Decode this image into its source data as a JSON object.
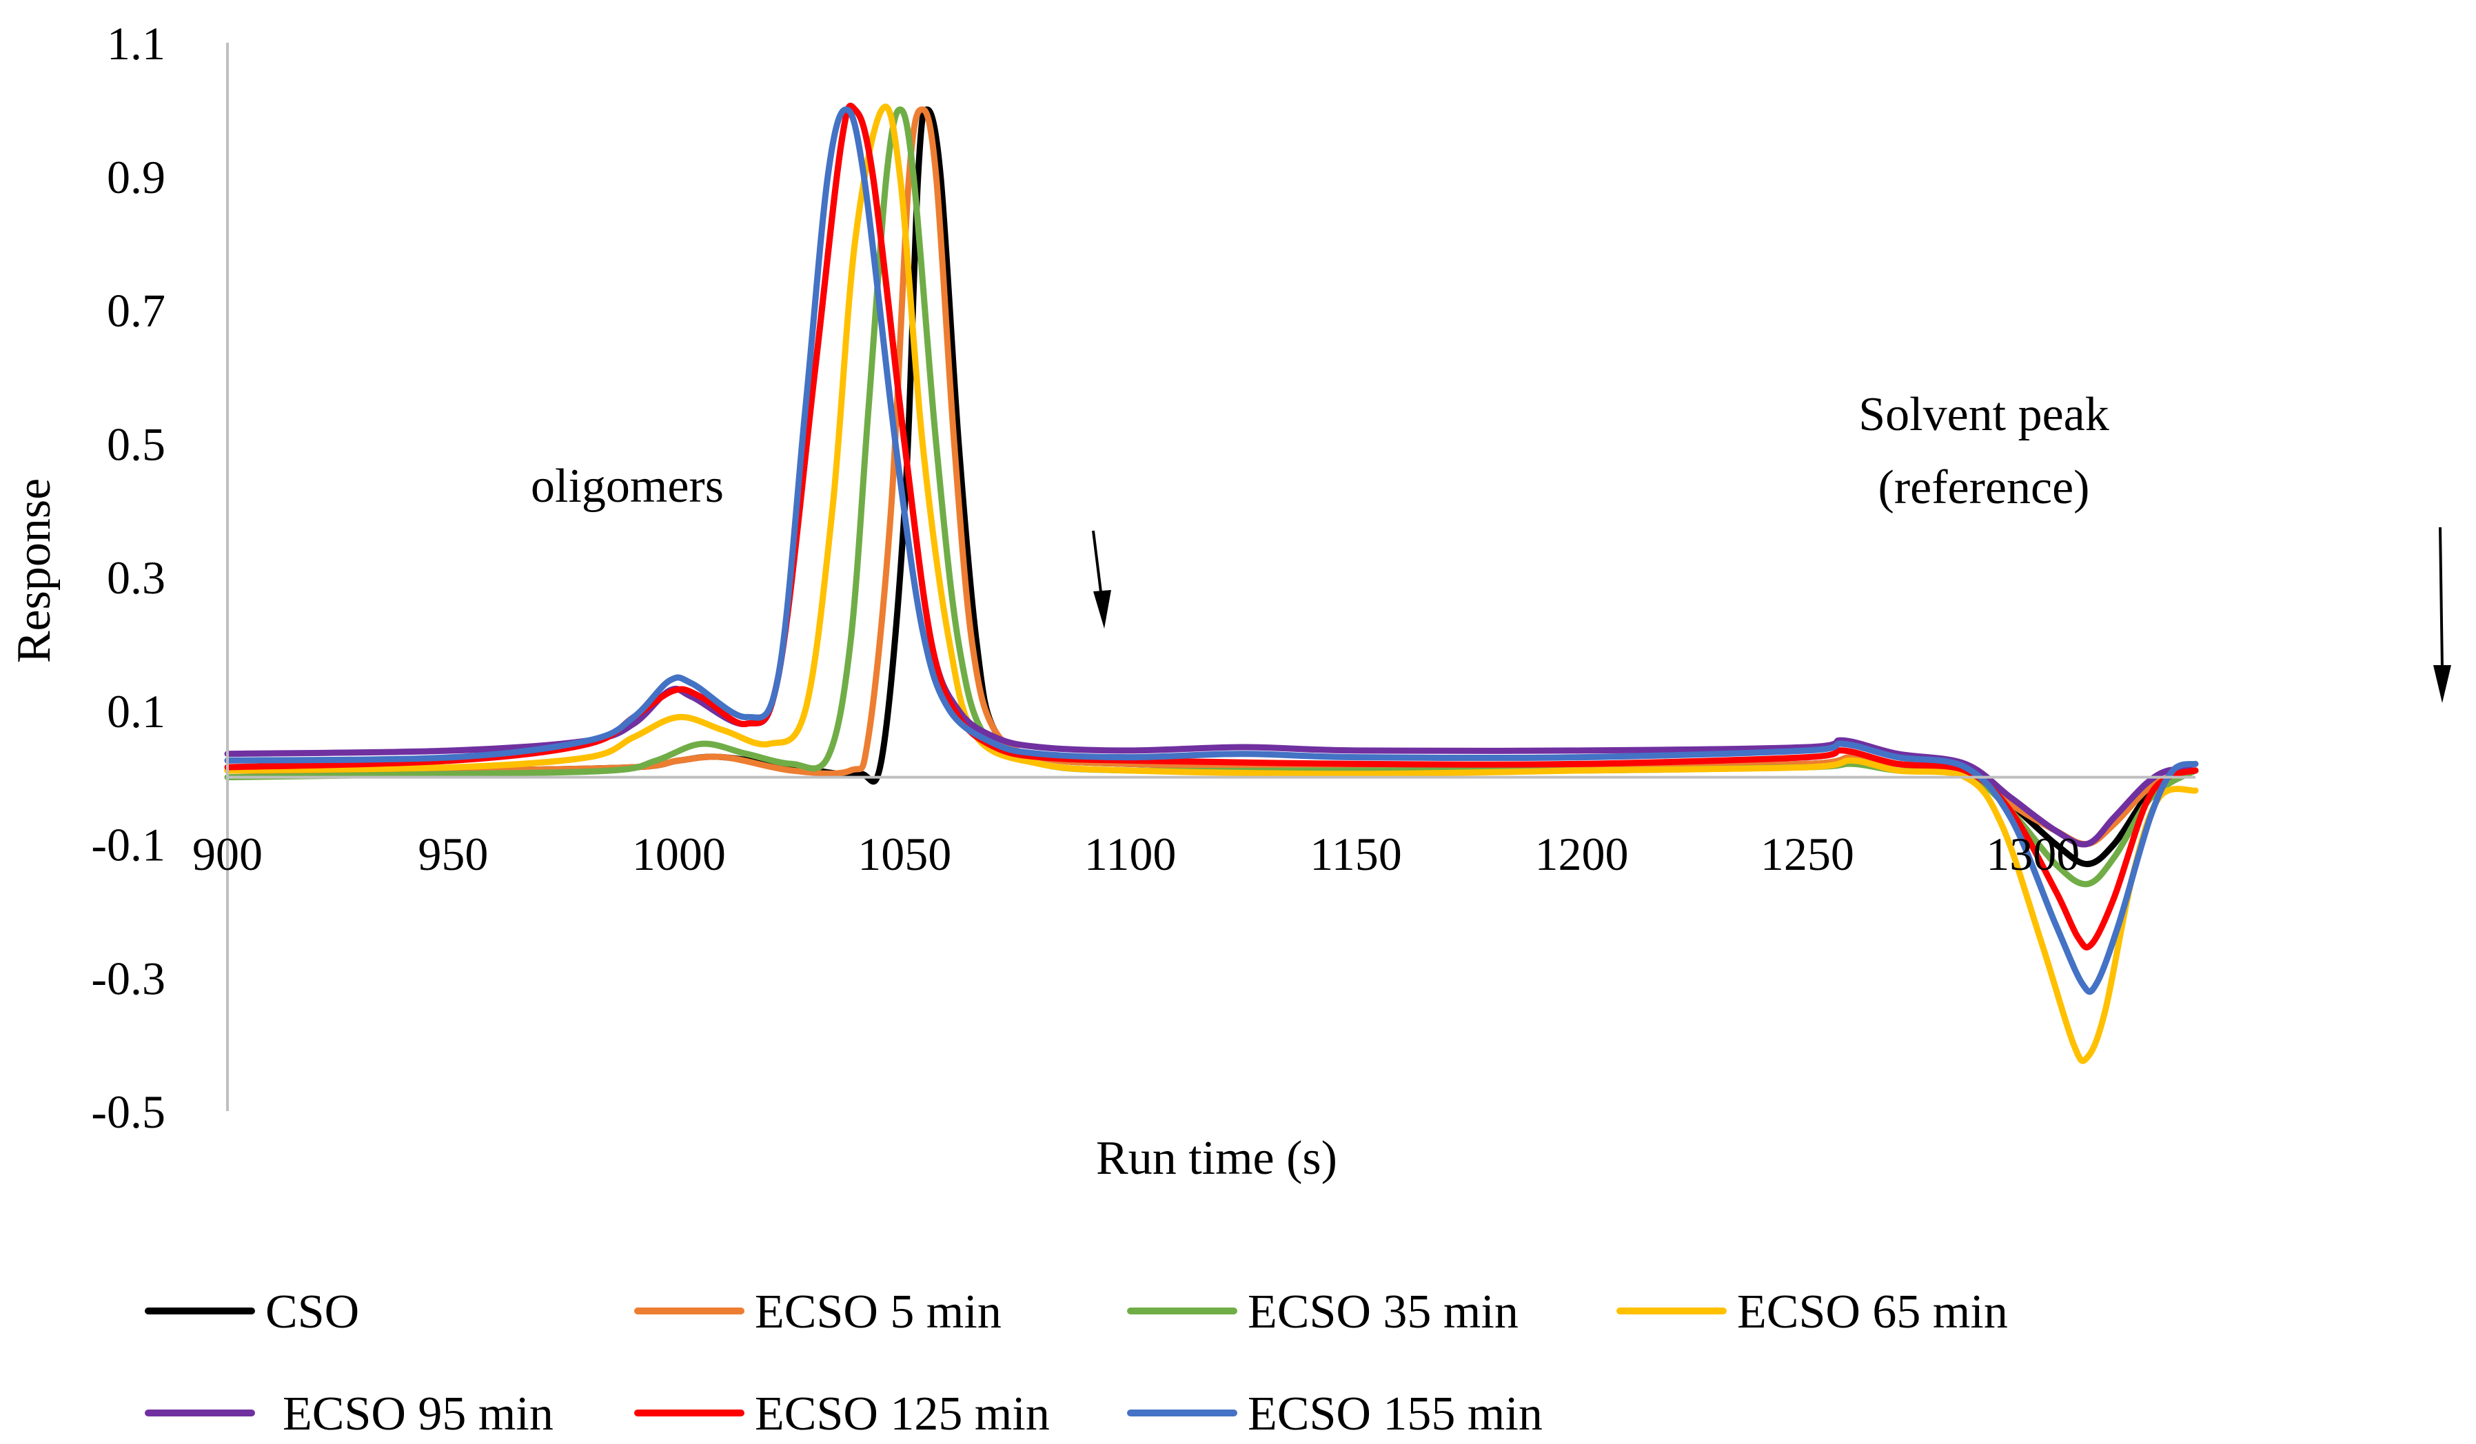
{
  "chart_data": {
    "type": "line",
    "title": "",
    "xlabel": "Run time (s)",
    "ylabel": "Response",
    "xlim": [
      900,
      1336
    ],
    "ylim": [
      -0.5,
      1.1
    ],
    "x_ticks": [
      900,
      950,
      1000,
      1050,
      1100,
      1150,
      1200,
      1250,
      1300
    ],
    "y_ticks": [
      1.1,
      0.9,
      0.7,
      0.5,
      0.3,
      0.1,
      -0.1,
      -0.3,
      -0.5
    ],
    "grid": false,
    "legend_position": "bottom",
    "annotations": {
      "oligomers": "oligomers",
      "solvent_line1": "Solvent peak",
      "solvent_line2": "(reference)"
    },
    "series": [
      {
        "name": "CSO",
        "color": "#000000",
        "points": [
          [
            900,
            0.01
          ],
          [
            950,
            0.01
          ],
          [
            990,
            0.015
          ],
          [
            1000,
            0.025
          ],
          [
            1010,
            0.03
          ],
          [
            1030,
            0.01
          ],
          [
            1040,
            0.005
          ],
          [
            1045,
            0.03
          ],
          [
            1050,
            0.4
          ],
          [
            1053,
            0.9
          ],
          [
            1055,
            1.0
          ],
          [
            1058,
            0.9
          ],
          [
            1062,
            0.5
          ],
          [
            1066,
            0.2
          ],
          [
            1070,
            0.07
          ],
          [
            1080,
            0.03
          ],
          [
            1100,
            0.02
          ],
          [
            1150,
            0.015
          ],
          [
            1200,
            0.015
          ],
          [
            1250,
            0.02
          ],
          [
            1260,
            0.03
          ],
          [
            1270,
            0.02
          ],
          [
            1285,
            0.01
          ],
          [
            1295,
            -0.04
          ],
          [
            1305,
            -0.1
          ],
          [
            1312,
            -0.13
          ],
          [
            1318,
            -0.1
          ],
          [
            1325,
            -0.03
          ],
          [
            1330,
            0.0
          ],
          [
            1336,
            0.01
          ]
        ]
      },
      {
        "name": "ECSO 5 min",
        "color": "#ED7D31",
        "points": [
          [
            900,
            0.01
          ],
          [
            950,
            0.01
          ],
          [
            990,
            0.015
          ],
          [
            1000,
            0.025
          ],
          [
            1010,
            0.03
          ],
          [
            1025,
            0.01
          ],
          [
            1038,
            0.01
          ],
          [
            1042,
            0.06
          ],
          [
            1047,
            0.4
          ],
          [
            1051,
            0.9
          ],
          [
            1054,
            1.0
          ],
          [
            1057,
            0.9
          ],
          [
            1061,
            0.5
          ],
          [
            1065,
            0.2
          ],
          [
            1070,
            0.07
          ],
          [
            1080,
            0.03
          ],
          [
            1100,
            0.02
          ],
          [
            1150,
            0.015
          ],
          [
            1200,
            0.015
          ],
          [
            1250,
            0.02
          ],
          [
            1260,
            0.03
          ],
          [
            1270,
            0.02
          ],
          [
            1285,
            0.01
          ],
          [
            1295,
            -0.04
          ],
          [
            1305,
            -0.08
          ],
          [
            1312,
            -0.1
          ],
          [
            1318,
            -0.07
          ],
          [
            1325,
            -0.02
          ],
          [
            1330,
            0.0
          ],
          [
            1336,
            0.01
          ]
        ]
      },
      {
        "name": "ECSO 35 min",
        "color": "#70AD47",
        "points": [
          [
            900,
            0.0
          ],
          [
            950,
            0.005
          ],
          [
            985,
            0.01
          ],
          [
            995,
            0.025
          ],
          [
            1005,
            0.05
          ],
          [
            1015,
            0.035
          ],
          [
            1025,
            0.02
          ],
          [
            1033,
            0.03
          ],
          [
            1038,
            0.2
          ],
          [
            1042,
            0.55
          ],
          [
            1046,
            0.9
          ],
          [
            1049,
            1.0
          ],
          [
            1052,
            0.9
          ],
          [
            1057,
            0.5
          ],
          [
            1062,
            0.2
          ],
          [
            1068,
            0.06
          ],
          [
            1080,
            0.02
          ],
          [
            1100,
            0.01
          ],
          [
            1150,
            0.01
          ],
          [
            1200,
            0.01
          ],
          [
            1250,
            0.015
          ],
          [
            1260,
            0.02
          ],
          [
            1270,
            0.01
          ],
          [
            1285,
            0.005
          ],
          [
            1295,
            -0.05
          ],
          [
            1305,
            -0.13
          ],
          [
            1312,
            -0.16
          ],
          [
            1318,
            -0.12
          ],
          [
            1325,
            -0.04
          ],
          [
            1330,
            -0.01
          ],
          [
            1336,
            0.01
          ]
        ]
      },
      {
        "name": "ECSO 65 min",
        "color": "#FFC000",
        "points": [
          [
            900,
            0.01
          ],
          [
            950,
            0.015
          ],
          [
            980,
            0.03
          ],
          [
            990,
            0.06
          ],
          [
            1000,
            0.09
          ],
          [
            1010,
            0.07
          ],
          [
            1020,
            0.05
          ],
          [
            1028,
            0.1
          ],
          [
            1034,
            0.4
          ],
          [
            1039,
            0.8
          ],
          [
            1045,
            1.0
          ],
          [
            1049,
            0.9
          ],
          [
            1054,
            0.5
          ],
          [
            1060,
            0.2
          ],
          [
            1066,
            0.06
          ],
          [
            1080,
            0.02
          ],
          [
            1100,
            0.01
          ],
          [
            1150,
            0.005
          ],
          [
            1200,
            0.01
          ],
          [
            1250,
            0.015
          ],
          [
            1260,
            0.025
          ],
          [
            1270,
            0.01
          ],
          [
            1285,
            0.0
          ],
          [
            1293,
            -0.07
          ],
          [
            1302,
            -0.25
          ],
          [
            1309,
            -0.4
          ],
          [
            1312,
            -0.42
          ],
          [
            1316,
            -0.35
          ],
          [
            1322,
            -0.15
          ],
          [
            1328,
            -0.03
          ],
          [
            1336,
            -0.02
          ]
        ]
      },
      {
        "name": "ECSO 95 min",
        "color": "#7030A0",
        "points": [
          [
            900,
            0.035
          ],
          [
            950,
            0.04
          ],
          [
            980,
            0.055
          ],
          [
            990,
            0.08
          ],
          [
            998,
            0.13
          ],
          [
            1003,
            0.12
          ],
          [
            1015,
            0.08
          ],
          [
            1022,
            0.15
          ],
          [
            1030,
            0.6
          ],
          [
            1036,
            0.95
          ],
          [
            1039,
            1.0
          ],
          [
            1043,
            0.9
          ],
          [
            1050,
            0.5
          ],
          [
            1056,
            0.2
          ],
          [
            1062,
            0.1
          ],
          [
            1070,
            0.06
          ],
          [
            1080,
            0.045
          ],
          [
            1100,
            0.04
          ],
          [
            1125,
            0.045
          ],
          [
            1150,
            0.04
          ],
          [
            1200,
            0.04
          ],
          [
            1250,
            0.045
          ],
          [
            1258,
            0.055
          ],
          [
            1270,
            0.035
          ],
          [
            1285,
            0.02
          ],
          [
            1295,
            -0.03
          ],
          [
            1305,
            -0.08
          ],
          [
            1312,
            -0.1
          ],
          [
            1318,
            -0.06
          ],
          [
            1325,
            -0.01
          ],
          [
            1330,
            0.01
          ],
          [
            1336,
            0.01
          ]
        ]
      },
      {
        "name": "ECSO 125 min",
        "color": "#FF0000",
        "points": [
          [
            900,
            0.015
          ],
          [
            950,
            0.025
          ],
          [
            980,
            0.05
          ],
          [
            990,
            0.09
          ],
          [
            999,
            0.13
          ],
          [
            1005,
            0.12
          ],
          [
            1015,
            0.08
          ],
          [
            1022,
            0.15
          ],
          [
            1030,
            0.6
          ],
          [
            1036,
            0.95
          ],
          [
            1039,
            1.0
          ],
          [
            1043,
            0.9
          ],
          [
            1050,
            0.5
          ],
          [
            1056,
            0.2
          ],
          [
            1062,
            0.09
          ],
          [
            1070,
            0.045
          ],
          [
            1080,
            0.03
          ],
          [
            1100,
            0.025
          ],
          [
            1150,
            0.02
          ],
          [
            1200,
            0.02
          ],
          [
            1250,
            0.03
          ],
          [
            1258,
            0.04
          ],
          [
            1270,
            0.02
          ],
          [
            1285,
            0.01
          ],
          [
            1295,
            -0.05
          ],
          [
            1305,
            -0.17
          ],
          [
            1310,
            -0.24
          ],
          [
            1313,
            -0.25
          ],
          [
            1318,
            -0.18
          ],
          [
            1325,
            -0.04
          ],
          [
            1330,
            0.0
          ],
          [
            1336,
            0.01
          ]
        ]
      },
      {
        "name": "ECSO 155 min",
        "color": "#4472C4",
        "points": [
          [
            900,
            0.025
          ],
          [
            950,
            0.03
          ],
          [
            980,
            0.055
          ],
          [
            990,
            0.09
          ],
          [
            998,
            0.145
          ],
          [
            1003,
            0.14
          ],
          [
            1015,
            0.09
          ],
          [
            1022,
            0.15
          ],
          [
            1028,
            0.55
          ],
          [
            1033,
            0.9
          ],
          [
            1037,
            1.0
          ],
          [
            1041,
            0.9
          ],
          [
            1048,
            0.5
          ],
          [
            1054,
            0.22
          ],
          [
            1060,
            0.1
          ],
          [
            1070,
            0.05
          ],
          [
            1080,
            0.035
          ],
          [
            1100,
            0.03
          ],
          [
            1125,
            0.035
          ],
          [
            1150,
            0.03
          ],
          [
            1200,
            0.03
          ],
          [
            1250,
            0.04
          ],
          [
            1258,
            0.05
          ],
          [
            1270,
            0.03
          ],
          [
            1285,
            0.015
          ],
          [
            1295,
            -0.06
          ],
          [
            1305,
            -0.22
          ],
          [
            1311,
            -0.31
          ],
          [
            1314,
            -0.31
          ],
          [
            1319,
            -0.22
          ],
          [
            1326,
            -0.06
          ],
          [
            1331,
            0.01
          ],
          [
            1336,
            0.02
          ]
        ]
      }
    ]
  }
}
